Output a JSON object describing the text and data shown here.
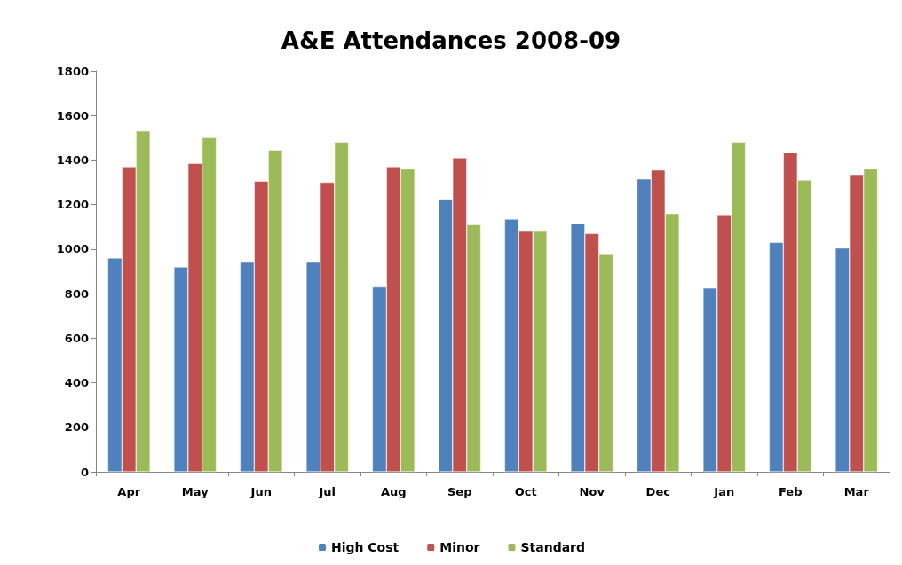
{
  "chart_data": {
    "type": "bar",
    "title": "A&E Attendances 2008-09",
    "categories": [
      "Apr",
      "May",
      "Jun",
      "Jul",
      "Aug",
      "Sep",
      "Oct",
      "Nov",
      "Dec",
      "Jan",
      "Feb",
      "Mar"
    ],
    "series": [
      {
        "name": "High Cost",
        "color": "#4f81bd",
        "values": [
          960,
          920,
          945,
          945,
          830,
          1225,
          1135,
          1115,
          1315,
          825,
          1030,
          1005
        ]
      },
      {
        "name": "Minor",
        "color": "#c0504d",
        "values": [
          1370,
          1385,
          1305,
          1300,
          1370,
          1410,
          1080,
          1070,
          1355,
          1155,
          1435,
          1335
        ]
      },
      {
        "name": "Standard",
        "color": "#9bbb59",
        "values": [
          1530,
          1500,
          1445,
          1480,
          1360,
          1110,
          1080,
          980,
          1160,
          1480,
          1310,
          1360
        ]
      }
    ],
    "ylim": [
      0,
      1800
    ],
    "yticks": [
      0,
      200,
      400,
      600,
      800,
      1000,
      1200,
      1400,
      1600,
      1800
    ],
    "grid": false,
    "legend": "bottom"
  }
}
